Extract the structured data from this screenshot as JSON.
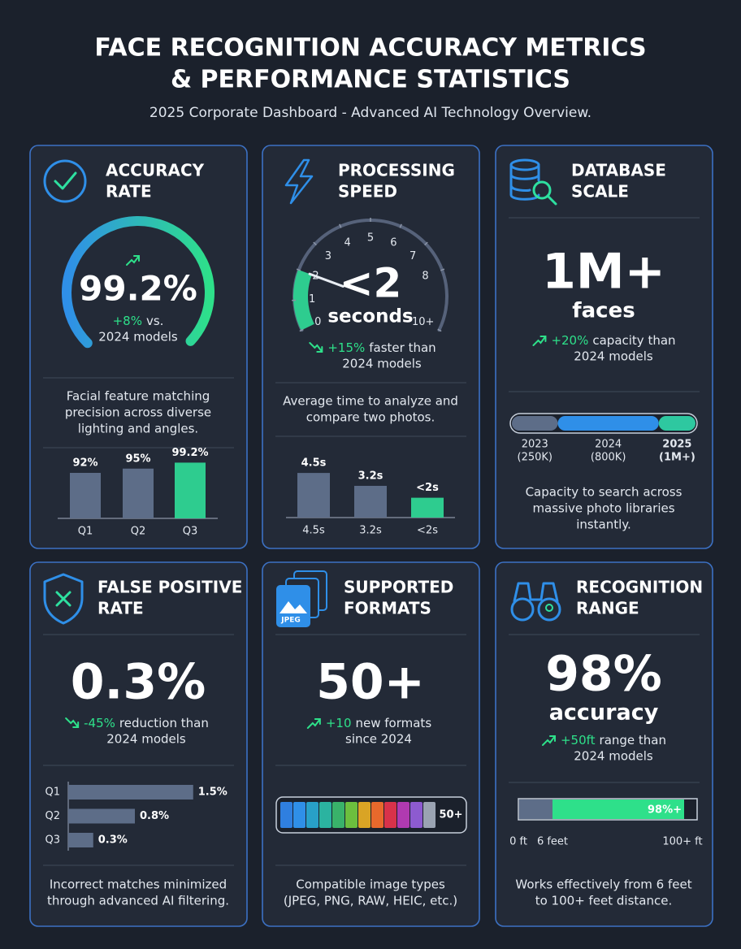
{
  "header": {
    "title": [
      "FACE RECOGNITION ACCURACY METRICS",
      "& PERFORMANCE STATISTICS"
    ],
    "subtitle": "2025 Corporate Dashboard - Advanced AI Technology Overview."
  },
  "cards": [
    {
      "title": [
        "ACCURACY",
        "RATE"
      ],
      "stat": {
        "value": 99.2,
        "label": "99.2%"
      },
      "gauge_lim": [
        0,
        100
      ],
      "change": "+8%",
      "change_text": [
        "vs.",
        "2024 models"
      ],
      "description": [
        "Facial feature matching",
        "precision across diverse",
        "lighting and angles."
      ],
      "chart": {
        "type": "bar",
        "categories": [
          "Q1",
          "Q2",
          "Q3"
        ],
        "values": [
          92,
          95,
          99.2
        ],
        "value_labels": [
          "92%",
          "95%",
          "99.2%"
        ],
        "ylim": [
          60,
          100
        ],
        "colors": [
          "#5d6d88",
          "#5d6d88",
          "#2ecc8f"
        ]
      }
    },
    {
      "title": [
        "PROCESSING",
        "SPEED"
      ],
      "stat": {
        "value": 2,
        "label": "<2"
      },
      "stat_unit": "seconds",
      "dial": {
        "lim": [
          0,
          10
        ],
        "ticks": [
          0,
          1,
          2,
          3,
          4,
          5,
          6,
          7,
          8,
          {
            "value": 10,
            "label": "10+"
          }
        ]
      },
      "change": "+15%",
      "change_text": [
        "faster than",
        "2024 models"
      ],
      "description": [
        "Average time to analyze and",
        "compare two photos."
      ],
      "chart": {
        "type": "bar",
        "categories": [
          "4.5s",
          "3.2s",
          "<2s"
        ],
        "values": [
          4.5,
          3.2,
          2
        ],
        "value_labels": [
          "4.5s",
          "3.2s",
          "<2s"
        ],
        "ylim": [
          0,
          5
        ],
        "colors": [
          "#5d6d88",
          "#5d6d88",
          "#2ecc8f"
        ]
      }
    },
    {
      "title": [
        "DATABASE",
        "SCALE"
      ],
      "stat": "1M+",
      "stat_unit": "faces",
      "change": "+20%",
      "change_text": [
        "capacity than",
        "2024 models"
      ],
      "chart": {
        "type": "progress",
        "categories": [
          "2023",
          "2024",
          "2025"
        ],
        "values": [
          250000,
          800000,
          1000000
        ],
        "value_labels": [
          "(250K)",
          "(800K)",
          "(1M+)"
        ],
        "xlim": [
          0,
          1000000
        ],
        "colors": [
          "#5d6d88",
          "#2f8fe8",
          "#2ec8a0"
        ]
      },
      "description": [
        "Capacity to search across",
        "massive photo libraries",
        "instantly."
      ]
    },
    {
      "title": [
        "FALSE POSITIVE",
        "RATE"
      ],
      "stat": "0.3%",
      "change": "-45%",
      "change_text": [
        "reduction than",
        "2024 models"
      ],
      "chart": {
        "type": "hbar",
        "categories": [
          "Q1",
          "Q2",
          "Q3"
        ],
        "values": [
          1.5,
          0.8,
          0.3
        ],
        "value_labels": [
          "1.5%",
          "0.8%",
          "0.3%"
        ],
        "xlim": [
          0,
          2
        ],
        "color": "#5d6d88"
      },
      "description": [
        "Incorrect matches minimized",
        "through advanced AI filtering."
      ]
    },
    {
      "title": [
        "SUPPORTED",
        "FORMATS"
      ],
      "icon_label": "JPEG",
      "stat": "50+",
      "change": "+10",
      "change_text": [
        "new formats",
        "since 2024"
      ],
      "strip_label": "50+",
      "description": [
        "Compatible image types",
        "(JPEG, PNG, RAW, HEIC, etc.)"
      ]
    },
    {
      "title": [
        "RECOGNITION",
        "RANGE"
      ],
      "stat": "98%",
      "stat_unit": "accuracy",
      "change": "+50ft",
      "change_text": [
        "range than",
        "2024 models"
      ],
      "range": {
        "bar_label": "98%+",
        "labels": [
          "0 ft",
          "6 feet",
          "100+ ft"
        ],
        "colors": [
          "#5d6d88",
          "#2ee08a"
        ]
      },
      "description": [
        "Works effectively from 6 feet",
        "to 100+ feet distance."
      ]
    }
  ]
}
